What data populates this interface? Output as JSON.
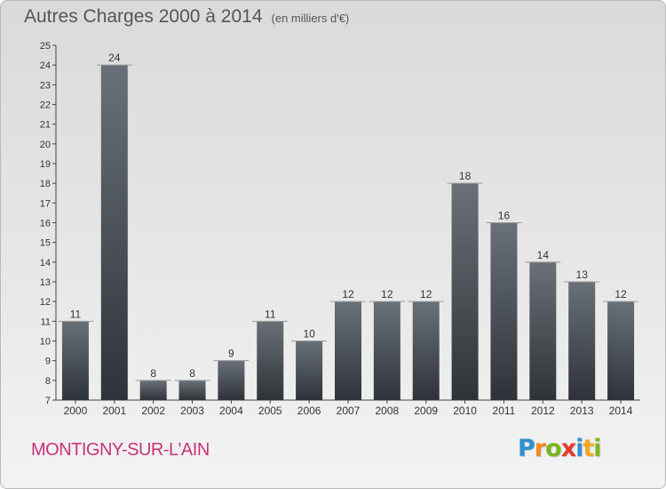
{
  "title": "Autres Charges 2000 à 2014",
  "title_unit": "(en milliers d'€)",
  "place": "MONTIGNY-SUR-L'AIN",
  "logo": {
    "text": "Proxiti",
    "letters": [
      {
        "ch": "P",
        "color": "#2f8fd0"
      },
      {
        "ch": "r",
        "color": "#f08a1c"
      },
      {
        "ch": "o",
        "color": "#7ab51d"
      },
      {
        "ch": "x",
        "color": "#e63a2e"
      },
      {
        "ch": "i",
        "color": "#2f8fd0"
      },
      {
        "ch": "t",
        "color": "#f5a623"
      },
      {
        "ch": "i",
        "color": "#7ab51d"
      }
    ]
  },
  "colors": {
    "title": "#555555",
    "place": "#c8347a",
    "bar_top": "#6a7078",
    "bar_bottom": "#2e3339"
  },
  "chart_data": {
    "type": "bar",
    "title": "Autres Charges 2000 à 2014",
    "categories": [
      "2000",
      "2001",
      "2002",
      "2003",
      "2004",
      "2005",
      "2006",
      "2007",
      "2008",
      "2009",
      "2010",
      "2011",
      "2012",
      "2013",
      "2014"
    ],
    "values": [
      11,
      24,
      8,
      8,
      9,
      11,
      10,
      12,
      12,
      12,
      18,
      16,
      14,
      13,
      12
    ],
    "ylim": [
      7,
      25
    ],
    "yticks": [
      7,
      8,
      9,
      10,
      11,
      12,
      13,
      14,
      15,
      16,
      17,
      18,
      19,
      20,
      21,
      22,
      23,
      24,
      25
    ],
    "grid": false,
    "data_labels": true
  }
}
